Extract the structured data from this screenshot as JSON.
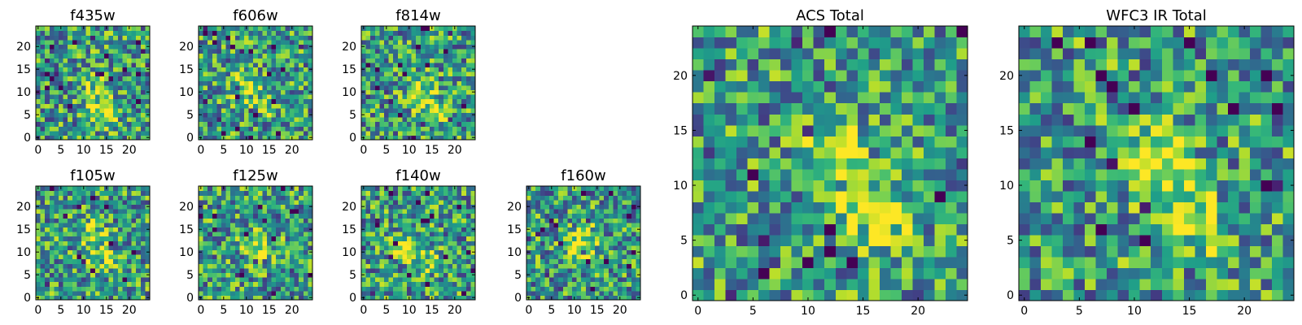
{
  "chart_data": [
    {
      "type": "heatmap",
      "title": "f435w",
      "xticks": [
        "0",
        "5",
        "10",
        "15",
        "20"
      ],
      "yticks": [
        "0",
        "5",
        "10",
        "15",
        "20"
      ],
      "xlim": [
        -0.5,
        24.5
      ],
      "ylim": [
        -0.5,
        24.5
      ],
      "grid_size": 25,
      "colormap": "viridis",
      "peaks": [
        {
          "x": 12,
          "y": 12,
          "amp": 0.25
        },
        {
          "x": 14,
          "y": 6,
          "amp": 0.45
        }
      ]
    },
    {
      "type": "heatmap",
      "title": "f606w",
      "xticks": [
        "0",
        "5",
        "10",
        "15",
        "20"
      ],
      "yticks": [
        "0",
        "5",
        "10",
        "15",
        "20"
      ],
      "xlim": [
        -0.5,
        24.5
      ],
      "ylim": [
        -0.5,
        24.5
      ],
      "grid_size": 25,
      "colormap": "viridis",
      "peaks": [
        {
          "x": 10,
          "y": 11,
          "amp": 0.35
        },
        {
          "x": 15,
          "y": 7,
          "amp": 0.25
        }
      ]
    },
    {
      "type": "heatmap",
      "title": "f814w",
      "xticks": [
        "0",
        "5",
        "10",
        "15",
        "20"
      ],
      "yticks": [
        "0",
        "5",
        "10",
        "15",
        "20"
      ],
      "xlim": [
        -0.5,
        24.5
      ],
      "ylim": [
        -0.5,
        24.5
      ],
      "grid_size": 25,
      "colormap": "viridis",
      "peaks": [
        {
          "x": 12,
          "y": 11,
          "amp": 0.3
        },
        {
          "x": 15,
          "y": 6,
          "amp": 0.35
        }
      ]
    },
    {
      "type": "heatmap",
      "title": "f105w",
      "xticks": [
        "0",
        "5",
        "10",
        "15",
        "20"
      ],
      "yticks": [
        "0",
        "5",
        "10",
        "15",
        "20"
      ],
      "xlim": [
        -0.5,
        24.5
      ],
      "ylim": [
        -0.5,
        24.5
      ],
      "grid_size": 25,
      "colormap": "viridis",
      "peaks": [
        {
          "x": 14,
          "y": 8,
          "amp": 0.35
        },
        {
          "x": 12,
          "y": 14,
          "amp": 0.3
        }
      ]
    },
    {
      "type": "heatmap",
      "title": "f125w",
      "xticks": [
        "0",
        "5",
        "10",
        "15",
        "20"
      ],
      "yticks": [
        "0",
        "5",
        "10",
        "15",
        "20"
      ],
      "xlim": [
        -0.5,
        24.5
      ],
      "ylim": [
        -0.5,
        24.5
      ],
      "grid_size": 25,
      "colormap": "viridis",
      "peaks": [
        {
          "x": 12,
          "y": 12,
          "amp": 0.3
        },
        {
          "x": 16,
          "y": 10,
          "amp": 0.25
        }
      ]
    },
    {
      "type": "heatmap",
      "title": "f140w",
      "xticks": [
        "0",
        "5",
        "10",
        "15",
        "20"
      ],
      "yticks": [
        "0",
        "5",
        "10",
        "15",
        "20"
      ],
      "xlim": [
        -0.5,
        24.5
      ],
      "ylim": [
        -0.5,
        24.5
      ],
      "grid_size": 25,
      "colormap": "viridis",
      "peaks": [
        {
          "x": 10,
          "y": 11,
          "amp": 0.4
        },
        {
          "x": 15,
          "y": 8,
          "amp": 0.3
        }
      ]
    },
    {
      "type": "heatmap",
      "title": "f160w",
      "xticks": [
        "0",
        "5",
        "10",
        "15",
        "20"
      ],
      "yticks": [
        "0",
        "5",
        "10",
        "15",
        "20"
      ],
      "xlim": [
        -0.5,
        24.5
      ],
      "ylim": [
        -0.5,
        24.5
      ],
      "grid_size": 25,
      "colormap": "viridis",
      "peaks": [
        {
          "x": 11,
          "y": 11,
          "amp": 0.45
        },
        {
          "x": 13,
          "y": 14,
          "amp": 0.25
        }
      ]
    },
    {
      "type": "heatmap",
      "title": "ACS Total",
      "xticks": [
        "0",
        "5",
        "10",
        "15",
        "20"
      ],
      "yticks": [
        "0",
        "5",
        "10",
        "15",
        "20"
      ],
      "xlim": [
        -0.5,
        24.5
      ],
      "ylim": [
        -0.5,
        24.5
      ],
      "grid_size": 25,
      "colormap": "viridis",
      "peaks": [
        {
          "x": 12,
          "y": 13,
          "amp": 0.5
        },
        {
          "x": 16,
          "y": 7,
          "amp": 0.55
        }
      ]
    },
    {
      "type": "heatmap",
      "title": "WFC3 IR Total",
      "xticks": [
        "0",
        "5",
        "10",
        "15",
        "20"
      ],
      "yticks": [
        "0",
        "5",
        "10",
        "15",
        "20"
      ],
      "xlim": [
        -0.5,
        24.5
      ],
      "ylim": [
        -0.5,
        24.5
      ],
      "grid_size": 25,
      "colormap": "viridis",
      "peaks": [
        {
          "x": 12,
          "y": 12,
          "amp": 0.6
        },
        {
          "x": 15,
          "y": 7,
          "amp": 0.45
        }
      ]
    }
  ]
}
